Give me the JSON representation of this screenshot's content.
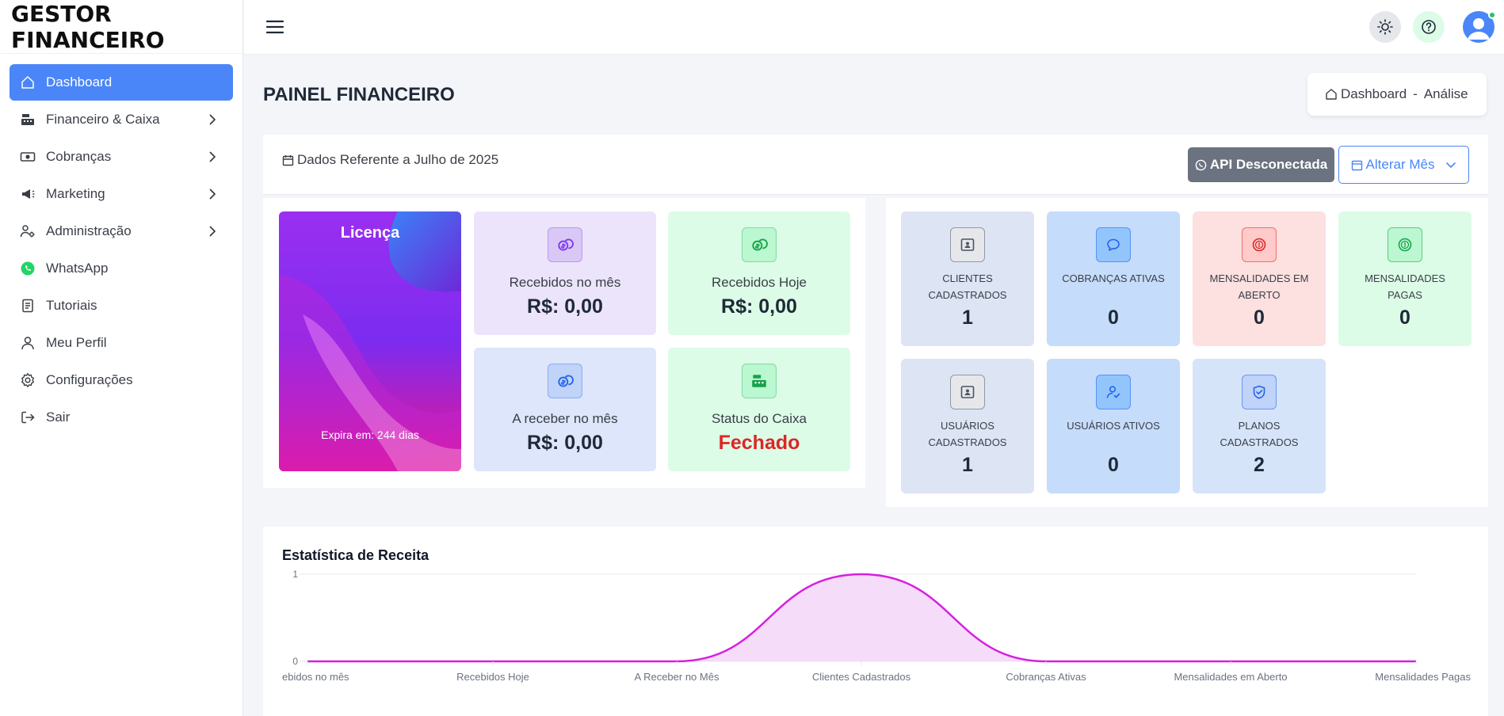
{
  "app": {
    "brand": "GESTOR FINANCEIRO"
  },
  "sidebar": {
    "items": [
      {
        "label": "Dashboard",
        "icon": "home-icon",
        "active": true,
        "submenu": false
      },
      {
        "label": "Financeiro & Caixa",
        "icon": "cash-register-icon",
        "submenu": true
      },
      {
        "label": "Cobranças",
        "icon": "money-bill-icon",
        "submenu": true
      },
      {
        "label": "Marketing",
        "icon": "megaphone-icon",
        "submenu": true
      },
      {
        "label": "Administração",
        "icon": "users-gear-icon",
        "submenu": true
      },
      {
        "label": "WhatsApp",
        "icon": "whatsapp-icon",
        "submenu": false
      },
      {
        "label": "Tutoriais",
        "icon": "document-icon",
        "submenu": false
      },
      {
        "label": "Meu Perfil",
        "icon": "user-icon",
        "submenu": false
      },
      {
        "label": "Configurações",
        "icon": "gear-icon",
        "submenu": false
      },
      {
        "label": "Sair",
        "icon": "logout-icon",
        "submenu": false
      }
    ]
  },
  "header": {
    "title": "PAINEL FINANCEIRO",
    "breadcrumb": {
      "home": "Dashboard",
      "separator": "-",
      "current": "Análise"
    }
  },
  "toolbar": {
    "date_label": "Dados Referente a Julho de 2025",
    "api_button": "API Desconectada",
    "month_button": "Alterar Mês"
  },
  "license": {
    "title": "Licença",
    "expires": "Expira em: 244 dias"
  },
  "summary_cards": [
    {
      "label": "Recebidos no mês",
      "value": "R$: 0,00",
      "bg": "#ece4fb",
      "icon_bg": "#d9c8f6",
      "icon_color": "#7c3aed"
    },
    {
      "label": "Recebidos Hoje",
      "value": "R$: 0,00",
      "bg": "#dcfce7",
      "icon_bg": "#bbf7d0",
      "icon_color": "#16a34a"
    },
    {
      "label": "A receber no mês",
      "value": "R$: 0,00",
      "bg": "#dde6fa",
      "icon_bg": "#c0d3f8",
      "icon_color": "#2563eb"
    },
    {
      "label": "Status do Caixa",
      "value": "Fechado",
      "bg": "#dcfce7",
      "icon_bg": "#bbf7d0",
      "icon_color": "#16a34a",
      "value_color": "#dc2626"
    }
  ],
  "kpi_cards": [
    {
      "label": "CLIENTES CADASTRADOS",
      "value": "1",
      "bg": "#dde4f4",
      "icon_bg": "#e5e7eb",
      "icon_color": "#4b5563",
      "icon": "contact-card-icon"
    },
    {
      "label": "COBRANÇAS ATIVAS",
      "value": "0",
      "bg": "#c5dcfb",
      "icon_bg": "#93c5fd",
      "icon_color": "#2563eb",
      "icon": "chat-icon"
    },
    {
      "label": "MENSALIDADES EM ABERTO",
      "value": "0",
      "bg": "#fde0e0",
      "icon_bg": "#fecaca",
      "icon_color": "#dc2626",
      "icon": "dollar-circle-icon"
    },
    {
      "label": "MENSALIDADES PAGAS",
      "value": "0",
      "bg": "#dcfce7",
      "icon_bg": "#bbf7d0",
      "icon_color": "#16a34a",
      "icon": "dollar-circle-icon"
    },
    {
      "label": "USUÁRIOS CADASTRADOS",
      "value": "1",
      "bg": "#dde4f4",
      "icon_bg": "#e5e7eb",
      "icon_color": "#4b5563",
      "icon": "contact-card-icon"
    },
    {
      "label": "USUÁRIOS ATIVOS",
      "value": "0",
      "bg": "#c5dcfb",
      "icon_bg": "#93c5fd",
      "icon_color": "#2563eb",
      "icon": "user-check-icon"
    },
    {
      "label": "PLANOS CADASTRADOS",
      "value": "2",
      "bg": "#d6e4fa",
      "icon_bg": "#c0d3f8",
      "icon_color": "#2563eb",
      "icon": "shield-check-icon"
    }
  ],
  "chart_data": {
    "type": "area",
    "title": "Estatística de Receita",
    "categories": [
      "ebidos no mês",
      "Recebidos Hoje",
      "A Receber no Mês",
      "Clientes Cadastrados",
      "Cobranças Ativas",
      "Mensalidades em Aberto",
      "Mensalidades Pagas"
    ],
    "series": [
      {
        "values": [
          0,
          0,
          0,
          1,
          0,
          0,
          0
        ]
      }
    ],
    "ylim": [
      0,
      1
    ],
    "y_ticks": [
      "0",
      "1"
    ],
    "color": "#d61fe0",
    "fill": "#f5dcf9",
    "grid": true
  }
}
